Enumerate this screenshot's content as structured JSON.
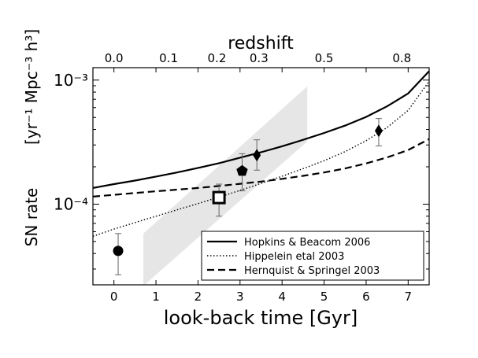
{
  "chart_data": {
    "type": "line",
    "xlabel": "look-back time [Gyr]",
    "top_axis_label": "redshift",
    "ylabel_text": "SN rate",
    "ylabel_units": "[yr⁻¹ Mpc⁻³ h³]",
    "x_range": [
      -0.5,
      7.5
    ],
    "y_range_log10": [
      -4.65,
      -2.9
    ],
    "y_scale": "log",
    "x_ticks": [
      "0",
      "1",
      "2",
      "3",
      "4",
      "5",
      "6",
      "7"
    ],
    "y_ticks": [
      "10⁻⁴",
      "10⁻³"
    ],
    "top_ticks": [
      {
        "label": "0.0",
        "x": 0.0
      },
      {
        "label": "0.1",
        "x": 1.3
      },
      {
        "label": "0.2",
        "x": 2.45
      },
      {
        "label": "0.3",
        "x": 3.45
      },
      {
        "label": "0.5",
        "x": 5.0
      },
      {
        "label": "0.8",
        "x": 6.85
      }
    ],
    "legend_position": "lower-right",
    "grid": false,
    "series": [
      {
        "name": "Hopkins & Beacom 2006",
        "style": "solid",
        "x": [
          -0.5,
          0,
          0.5,
          1,
          1.5,
          2,
          2.5,
          3,
          3.5,
          4,
          4.5,
          5,
          5.5,
          6,
          6.5,
          7,
          7.5
        ],
        "y": [
          0.000135,
          0.000145,
          0.000155,
          0.000167,
          0.00018,
          0.000196,
          0.000214,
          0.000237,
          0.000262,
          0.000293,
          0.00033,
          0.000375,
          0.00043,
          0.000505,
          0.000615,
          0.00078,
          0.00118
        ]
      },
      {
        "name": "Hippelein etal 2003",
        "style": "dotted",
        "x": [
          -0.5,
          0,
          0.5,
          1,
          1.5,
          2,
          2.5,
          3,
          3.5,
          4,
          4.5,
          5,
          5.5,
          6,
          6.5,
          7,
          7.5
        ],
        "y": [
          5.5e-05,
          6.3e-05,
          7.1e-05,
          8e-05,
          9e-05,
          0.000101,
          0.000114,
          0.000129,
          0.000147,
          0.000168,
          0.000193,
          0.000224,
          0.000265,
          0.000325,
          0.000415,
          0.00057,
          0.00098
        ]
      },
      {
        "name": "Hernquist & Springel 2003",
        "style": "dashed",
        "x": [
          -0.5,
          0,
          0.5,
          1,
          1.5,
          2,
          2.5,
          3,
          3.5,
          4,
          4.5,
          5,
          5.5,
          6,
          6.5,
          7,
          7.5
        ],
        "y": [
          0.000115,
          0.000119,
          0.000123,
          0.000127,
          0.000131,
          0.000135,
          0.00014,
          0.000146,
          0.000152,
          0.00016,
          0.000169,
          0.00018,
          0.000194,
          0.000213,
          0.000238,
          0.000273,
          0.000335
        ]
      }
    ],
    "shaded_band": {
      "x_start": 0.7,
      "x_end": 4.6,
      "lower": [
        2.2e-05,
        0.00032
      ],
      "upper": [
        5.8e-05,
        0.00089
      ]
    },
    "points": [
      {
        "marker": "circle",
        "x": 0.1,
        "y": 4.2e-05,
        "ylo": 2.7e-05,
        "yhi": 5.8e-05
      },
      {
        "marker": "open-square",
        "x": 2.5,
        "y": 0.000113,
        "ylo": 8e-05,
        "yhi": 0.000145
      },
      {
        "marker": "pentagon",
        "x": 3.05,
        "y": 0.000185,
        "ylo": 0.000128,
        "yhi": 0.000255
      },
      {
        "marker": "diamond",
        "x": 3.4,
        "y": 0.000248,
        "ylo": 0.000188,
        "yhi": 0.00033
      },
      {
        "marker": "diamond",
        "x": 6.3,
        "y": 0.00039,
        "ylo": 0.000295,
        "yhi": 0.00049
      }
    ]
  }
}
